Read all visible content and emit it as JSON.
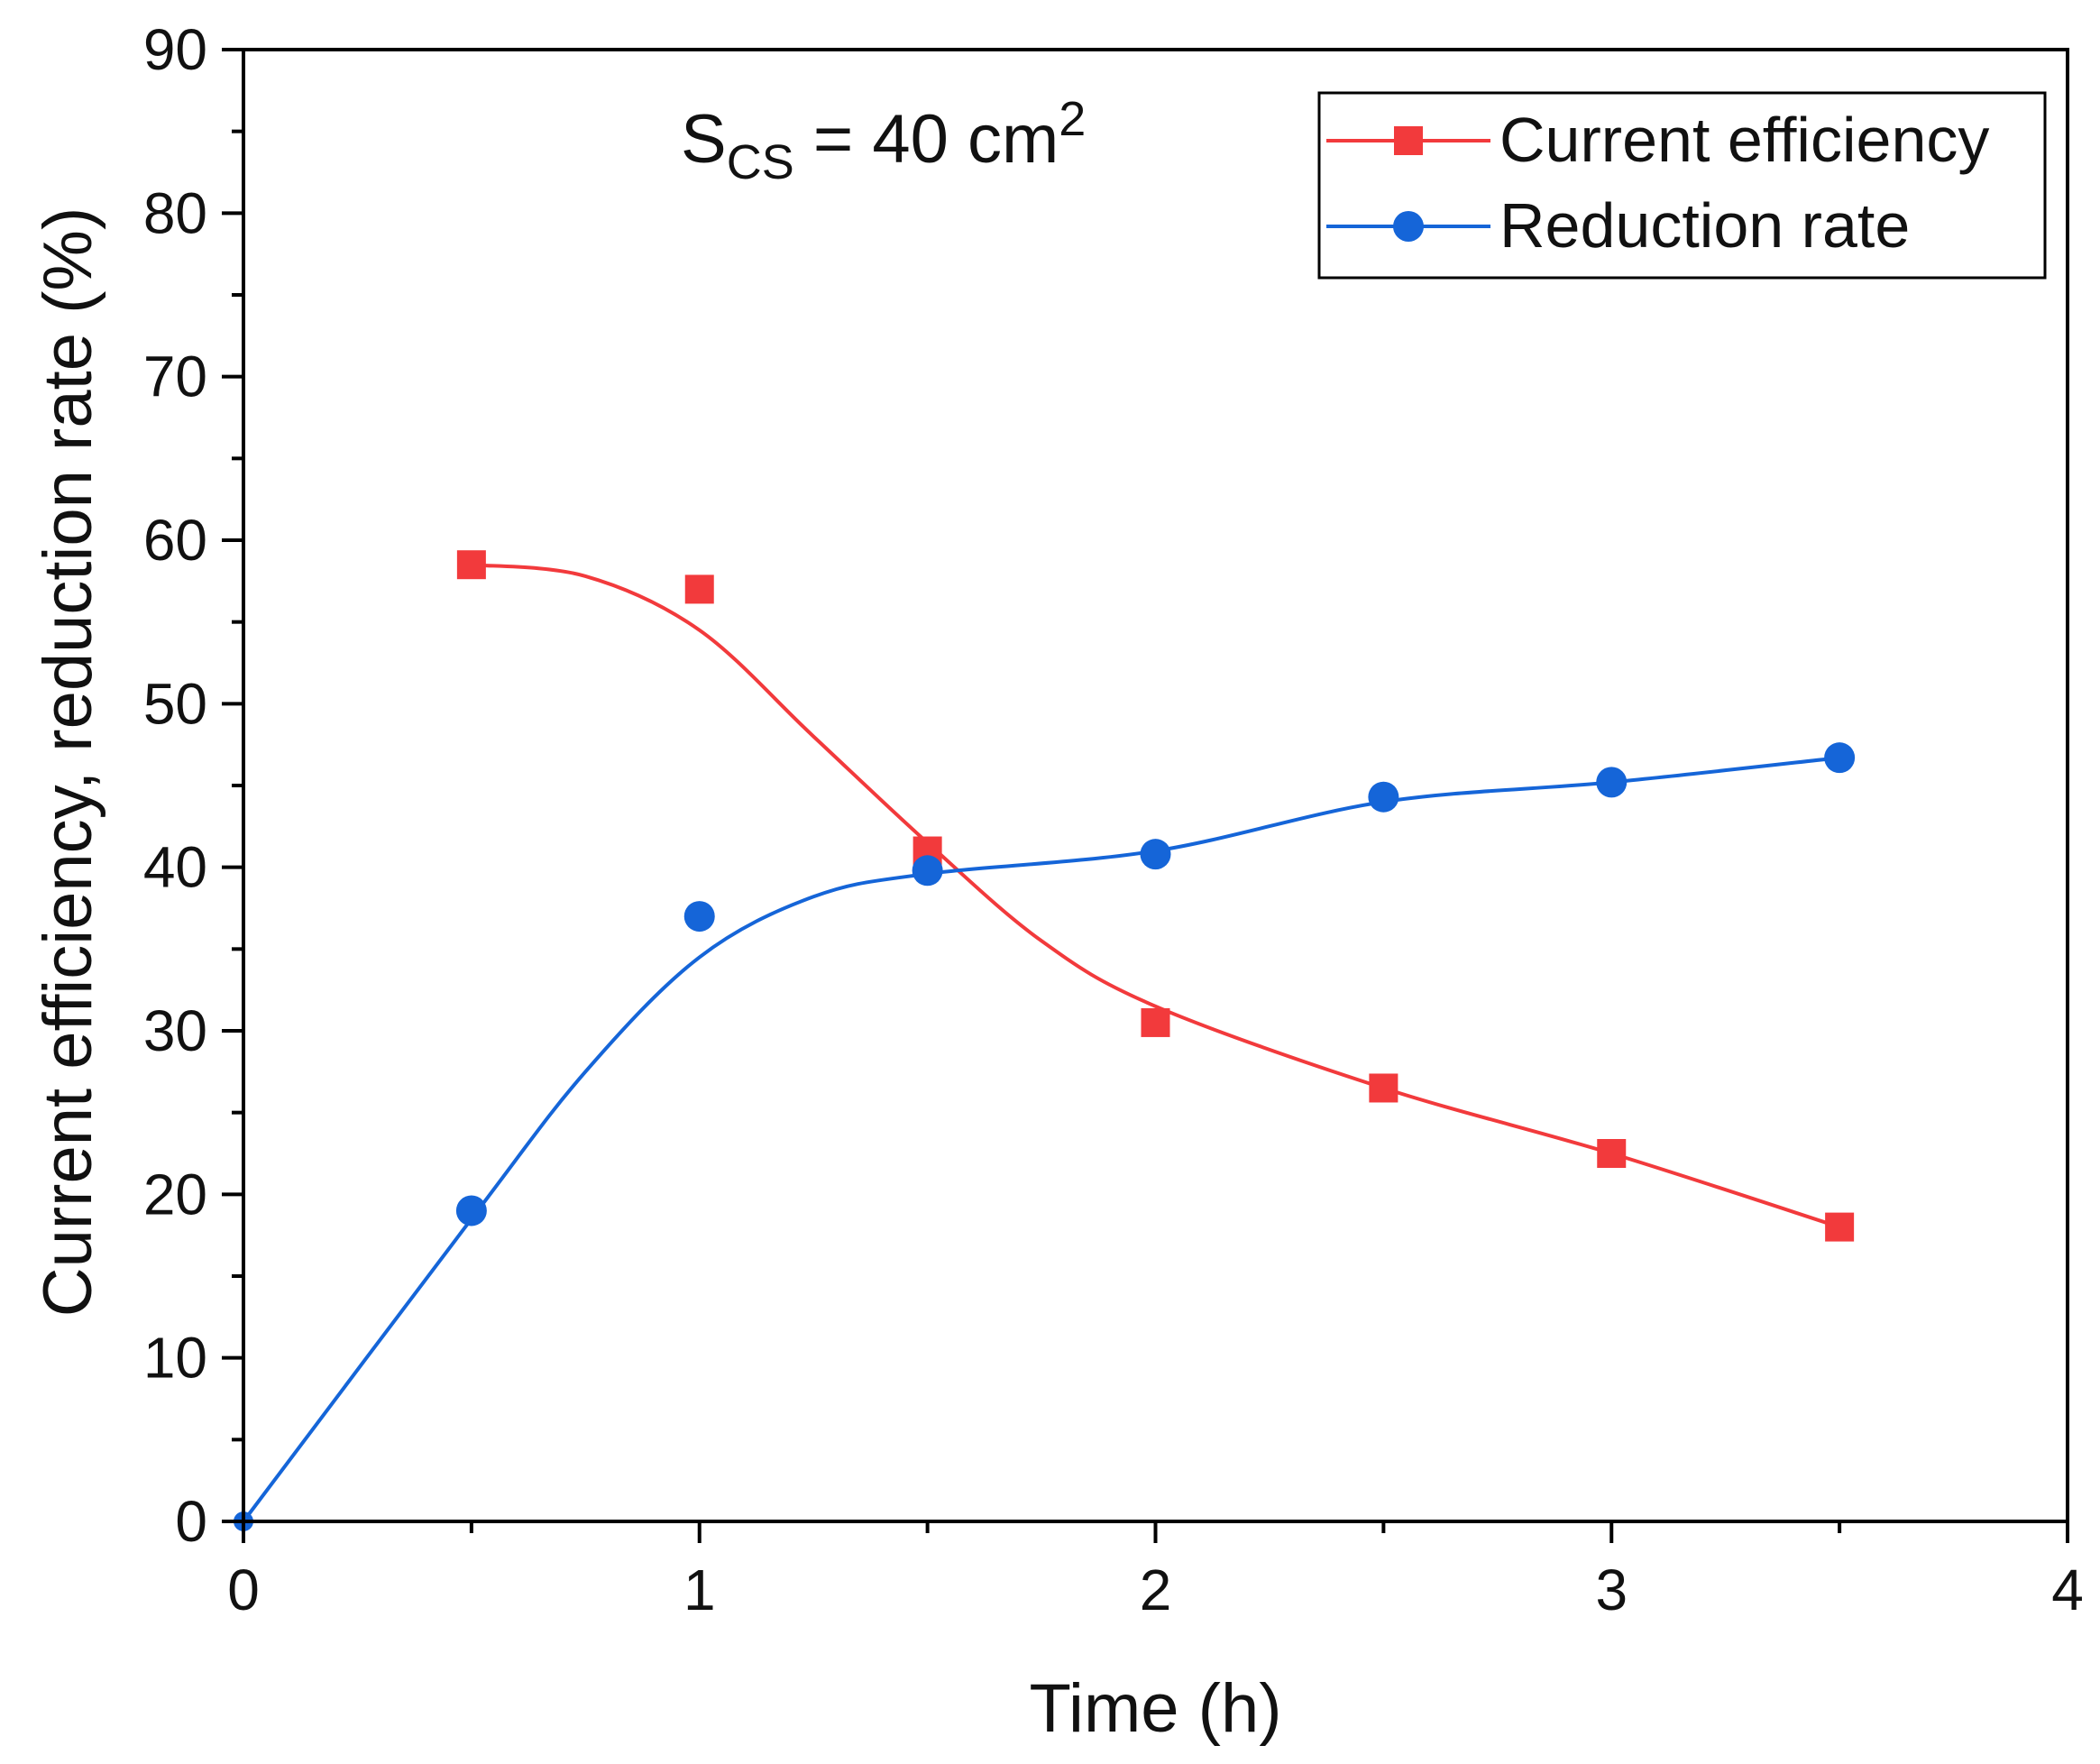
{
  "chart_data": {
    "type": "line",
    "title": "",
    "xlabel": "Time (h)",
    "ylabel": "Current efficiency, reduction rate (%)",
    "xlim": [
      0,
      4
    ],
    "ylim": [
      0,
      90
    ],
    "x_ticks": [
      0,
      1,
      2,
      3,
      4
    ],
    "y_ticks": [
      0,
      10,
      20,
      30,
      40,
      50,
      60,
      70,
      80,
      90
    ],
    "grid": false,
    "legend_position": "top-right",
    "annotation": {
      "main": "S",
      "sub": "CS",
      "eq": " = 40 cm",
      "sup": "2"
    },
    "series": [
      {
        "name": "Current efficiency",
        "color": "#f23a3c",
        "marker": "square",
        "x": [
          0.5,
          1.0,
          1.5,
          2.0,
          2.5,
          3.0,
          3.5
        ],
        "y": [
          58.5,
          57.0,
          41.0,
          30.5,
          26.5,
          22.5,
          18.0
        ],
        "fit_x": [
          0.5,
          0.75,
          1.0,
          1.25,
          1.5,
          1.75,
          2.0,
          2.5,
          3.0,
          3.5
        ],
        "fit_y": [
          58.5,
          57.8,
          54.5,
          48.0,
          41.5,
          35.5,
          31.5,
          26.5,
          22.5,
          18.0
        ]
      },
      {
        "name": "Reduction rate",
        "color": "#1565d8",
        "marker": "circle",
        "x": [
          0,
          0.5,
          1.0,
          1.5,
          2.0,
          2.5,
          3.0,
          3.5
        ],
        "y": [
          0,
          19.0,
          37.0,
          39.8,
          40.8,
          44.3,
          45.2,
          46.7
        ],
        "fit_x": [
          0,
          0.5,
          0.75,
          1.0,
          1.25,
          1.5,
          2.0,
          2.5,
          3.0,
          3.5
        ],
        "fit_y": [
          0,
          18.5,
          27.5,
          34.5,
          38.2,
          39.6,
          41.0,
          44.0,
          45.2,
          46.7
        ]
      }
    ]
  }
}
